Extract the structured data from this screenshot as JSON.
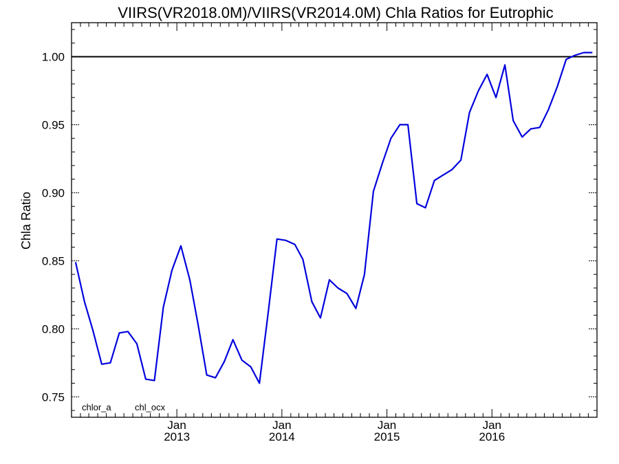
{
  "chart_data": {
    "type": "line",
    "title": "VIIRS(VR2018.0M)/VIIRS(VR2014.0M)  Chla Ratios for Eutrophic",
    "xlabel": "",
    "ylabel": "Chla Ratio",
    "xlim": [
      "2012-01-01",
      "2016-12-31"
    ],
    "ylim": [
      0.735,
      1.025
    ],
    "yticks": [
      0.75,
      0.8,
      0.85,
      0.9,
      0.95,
      1.0
    ],
    "ytick_labels": [
      "0.75",
      "0.80",
      "0.85",
      "0.90",
      "0.95",
      "1.00"
    ],
    "xticks": [
      {
        "date": "2013-01-01",
        "month": "Jan",
        "year": "2013"
      },
      {
        "date": "2014-01-01",
        "month": "Jan",
        "year": "2014"
      },
      {
        "date": "2015-01-01",
        "month": "Jan",
        "year": "2015"
      },
      {
        "date": "2016-01-01",
        "month": "Jan",
        "year": "2016"
      }
    ],
    "reference_line": {
      "y": 1.0,
      "color": "#000000"
    },
    "grid": false,
    "legend": {
      "placement": "bottom-left",
      "entries": [
        {
          "label": "chlor_a",
          "color": "#000000"
        },
        {
          "label": "chl_ocx",
          "color": "#0000dd"
        }
      ]
    },
    "series": [
      {
        "name": "chl_ocx",
        "color": "#0000dd",
        "x": [
          "2012-01-15",
          "2012-02-15",
          "2012-03-15",
          "2012-04-15",
          "2012-05-15",
          "2012-06-15",
          "2012-07-15",
          "2012-08-15",
          "2012-09-15",
          "2012-10-15",
          "2012-11-15",
          "2012-12-15",
          "2013-01-15",
          "2013-02-15",
          "2013-03-15",
          "2013-04-15",
          "2013-05-15",
          "2013-06-15",
          "2013-07-15",
          "2013-08-15",
          "2013-09-15",
          "2013-10-15",
          "2013-11-15",
          "2013-12-15",
          "2014-01-15",
          "2014-02-15",
          "2014-03-15",
          "2014-04-15",
          "2014-05-15",
          "2014-06-15",
          "2014-07-15",
          "2014-08-15",
          "2014-09-15",
          "2014-10-15",
          "2014-11-15",
          "2014-12-15",
          "2015-01-15",
          "2015-02-15",
          "2015-03-15",
          "2015-04-15",
          "2015-05-15",
          "2015-06-15",
          "2015-07-15",
          "2015-08-15",
          "2015-09-15",
          "2015-10-15",
          "2015-11-15",
          "2015-12-15",
          "2016-01-15",
          "2016-02-15",
          "2016-03-15",
          "2016-04-15",
          "2016-05-15",
          "2016-06-15",
          "2016-07-15",
          "2016-08-15",
          "2016-09-15",
          "2016-10-15",
          "2016-11-15",
          "2016-12-15"
        ],
        "values": [
          0.849,
          0.82,
          0.799,
          0.774,
          0.775,
          0.797,
          0.798,
          0.789,
          0.763,
          0.762,
          0.816,
          0.843,
          0.861,
          0.836,
          0.804,
          0.766,
          0.764,
          0.776,
          0.792,
          0.777,
          0.772,
          0.76,
          0.813,
          0.866,
          0.865,
          0.862,
          0.851,
          0.82,
          0.808,
          0.836,
          0.83,
          0.826,
          0.815,
          0.84,
          0.901,
          0.921,
          0.94,
          0.95,
          0.95,
          0.892,
          0.889,
          0.909,
          0.913,
          0.917,
          0.924,
          0.959,
          0.975,
          0.987,
          0.97,
          0.994,
          0.953,
          0.941,
          0.947,
          0.948,
          0.961,
          0.978,
          0.998,
          1.001,
          1.003,
          1.003
        ]
      }
    ]
  }
}
